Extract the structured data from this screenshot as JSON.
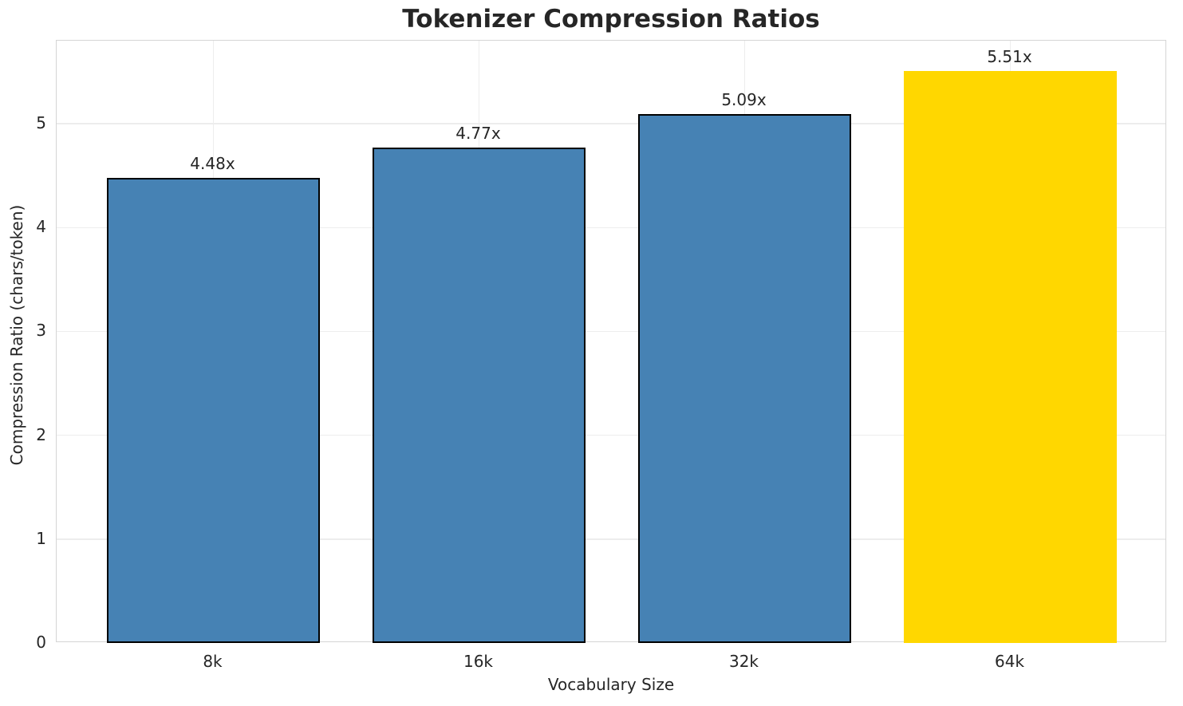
{
  "chart_data": {
    "type": "bar",
    "title": "Tokenizer Compression Ratios",
    "xlabel": "Vocabulary Size",
    "ylabel": "Compression Ratio (chars/token)",
    "categories": [
      "8k",
      "16k",
      "32k",
      "64k"
    ],
    "values": [
      4.48,
      4.77,
      5.09,
      5.51
    ],
    "bar_labels": [
      "4.48x",
      "4.77x",
      "5.09x",
      "5.51x"
    ],
    "yticks": [
      0,
      1,
      2,
      3,
      4,
      5
    ],
    "ylim": [
      0,
      5.8
    ],
    "xlim": [
      -0.59,
      3.59
    ],
    "bar_width_units": 0.8,
    "grid": true,
    "legend": "none",
    "bar_colors": [
      "#4682B4",
      "#4682B4",
      "#4682B4",
      "#FFD700"
    ],
    "bar_edge_colors": [
      "#000000",
      "#000000",
      "#000000",
      "none"
    ],
    "highlight_category": "64k",
    "colors": {
      "default_bar": "#4682B4",
      "highlight_bar": "#FFD700",
      "bar_edge": "#000000",
      "grid": "#ededed",
      "spine": "#d5d5d5",
      "text": "#262626",
      "background": "#ffffff"
    }
  }
}
